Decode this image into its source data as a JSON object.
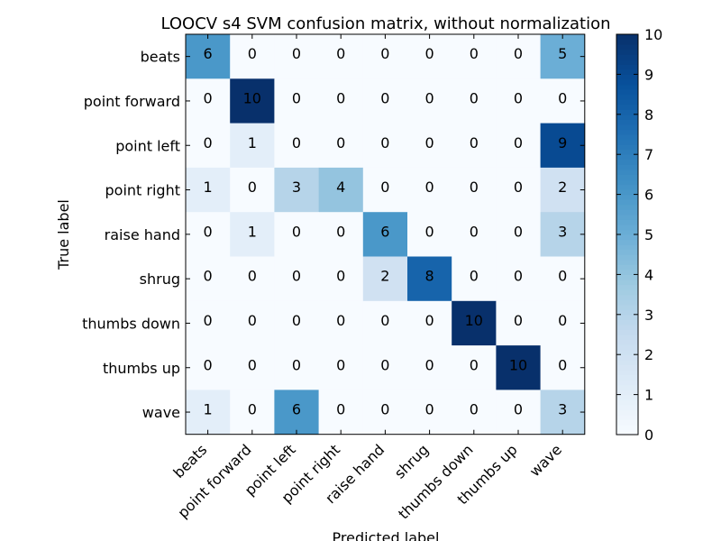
{
  "chart_data": {
    "type": "heatmap",
    "title": "LOOCV s4 SVM confusion matrix, without normalization",
    "xlabel": "Predicted label",
    "ylabel": "True label",
    "x_categories": [
      "beats",
      "point forward",
      "point left",
      "point right",
      "raise hand",
      "shrug",
      "thumbs down",
      "thumbs up",
      "wave"
    ],
    "y_categories": [
      "beats",
      "point forward",
      "point left",
      "point right",
      "raise hand",
      "shrug",
      "thumbs down",
      "thumbs up",
      "wave"
    ],
    "values": [
      [
        6,
        0,
        0,
        0,
        0,
        0,
        0,
        0,
        5
      ],
      [
        0,
        10,
        0,
        0,
        0,
        0,
        0,
        0,
        0
      ],
      [
        0,
        1,
        0,
        0,
        0,
        0,
        0,
        0,
        9
      ],
      [
        1,
        0,
        3,
        4,
        0,
        0,
        0,
        0,
        2
      ],
      [
        0,
        1,
        0,
        0,
        6,
        0,
        0,
        0,
        3
      ],
      [
        0,
        0,
        0,
        0,
        2,
        8,
        0,
        0,
        0
      ],
      [
        0,
        0,
        0,
        0,
        0,
        0,
        10,
        0,
        0
      ],
      [
        0,
        0,
        0,
        0,
        0,
        0,
        0,
        10,
        0
      ],
      [
        1,
        0,
        6,
        0,
        0,
        0,
        0,
        0,
        3
      ]
    ],
    "colorbar": {
      "min": 0,
      "max": 10,
      "ticks": [
        0,
        1,
        2,
        3,
        4,
        5,
        6,
        7,
        8,
        9,
        10
      ],
      "colormap": "Blues"
    },
    "colors": {
      "low": "#f7fbff",
      "high": "#08306b"
    }
  }
}
